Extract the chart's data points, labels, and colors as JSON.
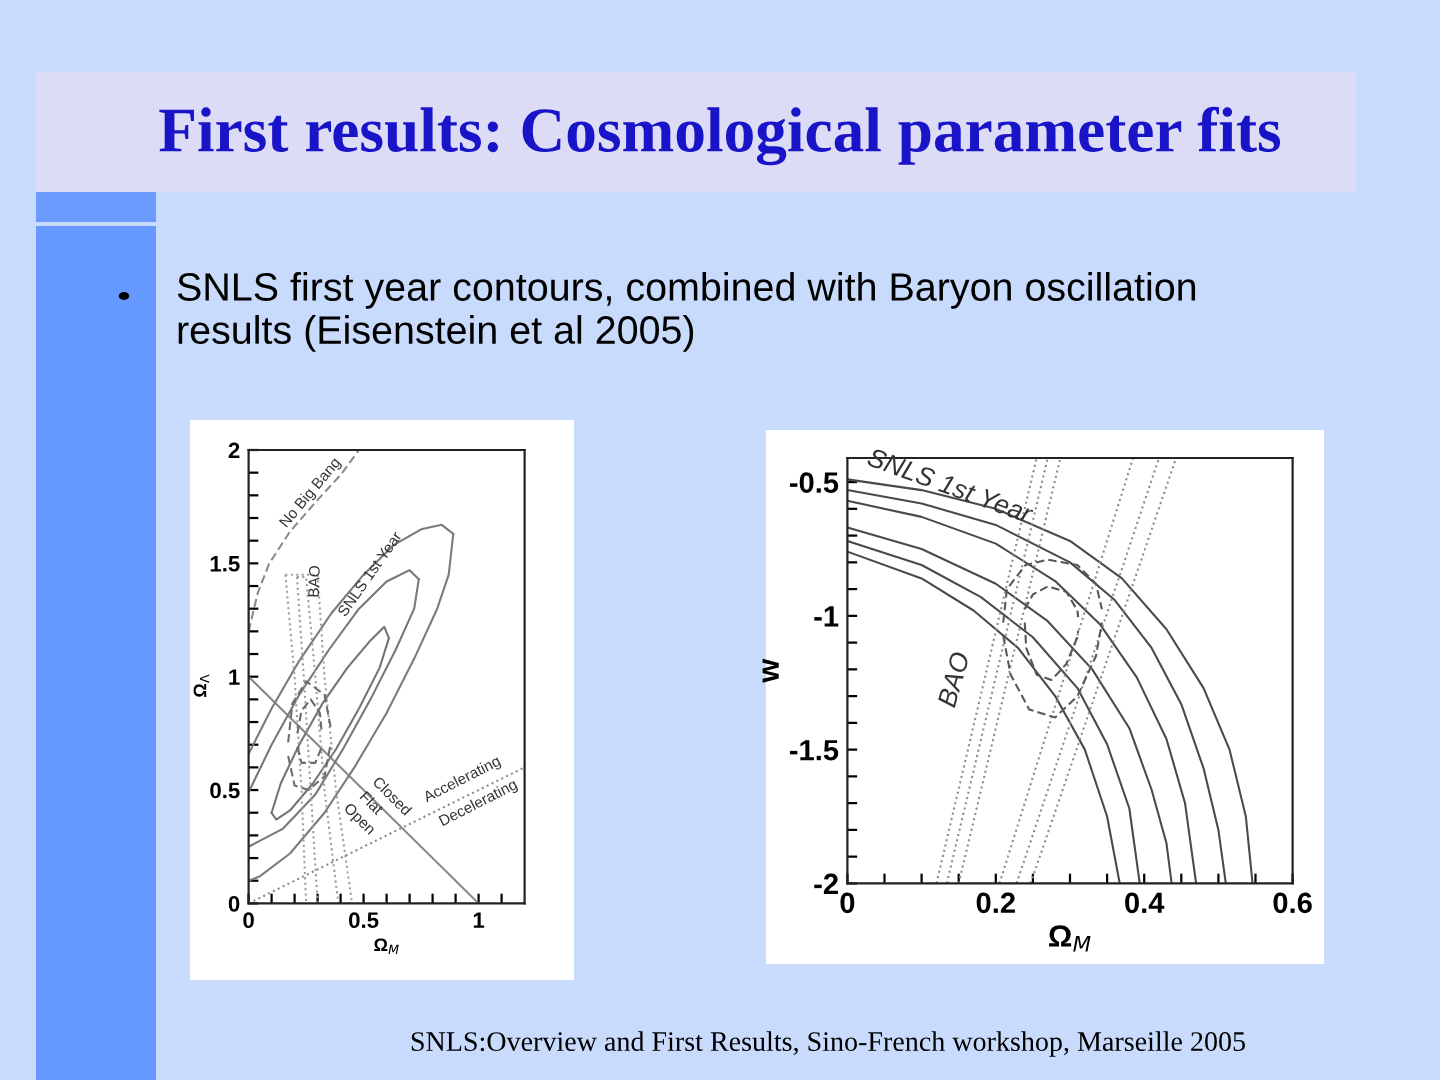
{
  "chart_data": [
    {
      "type": "other",
      "title": "First results: Cosmological parameter fits",
      "subtitle": "SNLS first year contours, combined with Baryon oscillation results (Eisenstein et al 2005)",
      "annotations": [
        "SNLS:Overview and First Results, Sino-French workshop, Marseille 2005"
      ]
    },
    {
      "type": "line",
      "xlabel": "Ω$_{M}$",
      "ylabel": "Ω$_{Λ}$",
      "xlim": [
        0,
        1.2
      ],
      "ylim": [
        0,
        2
      ],
      "xticks": [
        0,
        {
          "value": 0.1,
          "label": null
        },
        {
          "value": 0.2,
          "label": null
        },
        {
          "value": 0.3,
          "label": null
        },
        {
          "value": 0.4,
          "label": null
        },
        0.5,
        {
          "value": 0.6,
          "label": null
        },
        {
          "value": 0.7,
          "label": null
        },
        {
          "value": 0.8,
          "label": null
        },
        {
          "value": 0.9,
          "label": null
        },
        1,
        {
          "value": 1.1,
          "label": null
        }
      ],
      "yticks": [
        0,
        {
          "value": 0.1,
          "label": null
        },
        {
          "value": 0.2,
          "label": null
        },
        {
          "value": 0.3,
          "label": null
        },
        {
          "value": 0.4,
          "label": null
        },
        0.5,
        {
          "value": 0.6,
          "label": null
        },
        {
          "value": 0.7,
          "label": null
        },
        {
          "value": 0.8,
          "label": null
        },
        {
          "value": 0.9,
          "label": null
        },
        1,
        {
          "value": 1.1,
          "label": null
        },
        {
          "value": 1.2,
          "label": null
        },
        {
          "value": 1.3,
          "label": null
        },
        {
          "value": 1.4,
          "label": null
        },
        1.5,
        {
          "value": 1.6,
          "label": null
        },
        {
          "value": 1.7,
          "label": null
        },
        {
          "value": 1.8,
          "label": null
        },
        {
          "value": 1.9,
          "label": null
        },
        2
      ],
      "series": [
        {
          "color": "#8a8a8a",
          "line_style": "dashed",
          "x": [
            0,
            0.04,
            0.09,
            0.18,
            0.3,
            0.4,
            0.48
          ],
          "values": [
            1.2,
            1.37,
            1.5,
            1.64,
            1.78,
            1.89,
            2.0
          ]
        },
        {
          "color": "#888888",
          "line_style": "solid",
          "x": [
            0,
            1
          ],
          "values": [
            1,
            0
          ]
        },
        {
          "color": "#8c8c8c",
          "line_style": "dotted",
          "x": [
            0,
            1.2
          ],
          "values": [
            0,
            0.6
          ]
        },
        {
          "color": "#747474",
          "line_style": "solid",
          "x": [
            0.1,
            0.14,
            0.22,
            0.32,
            0.43,
            0.53,
            0.59,
            0.61
          ],
          "values": [
            0.4,
            0.53,
            0.7,
            0.88,
            1.04,
            1.16,
            1.22,
            1.17
          ]
        },
        {
          "color": "#757575",
          "line_style": "solid",
          "x": [
            0.1,
            0.12,
            0.18,
            0.28,
            0.38,
            0.48,
            0.57,
            0.61
          ],
          "values": [
            0.4,
            0.37,
            0.41,
            0.53,
            0.68,
            0.86,
            1.04,
            1.17
          ]
        },
        {
          "color": "#777777",
          "line_style": "solid",
          "x": [
            0,
            0.1,
            0.22,
            0.35,
            0.48,
            0.6,
            0.7,
            0.74
          ],
          "values": [
            0.49,
            0.7,
            0.92,
            1.12,
            1.3,
            1.42,
            1.47,
            1.43
          ]
        },
        {
          "color": "#787878",
          "line_style": "solid",
          "x": [
            0,
            0.15,
            0.29,
            0.41,
            0.53,
            0.64,
            0.72,
            0.74
          ],
          "values": [
            0.25,
            0.33,
            0.48,
            0.68,
            0.9,
            1.12,
            1.3,
            1.43
          ]
        },
        {
          "color": "#7a7a7a",
          "line_style": "solid",
          "x": [
            0,
            0.1,
            0.22,
            0.36,
            0.5,
            0.63,
            0.75,
            0.84,
            0.89
          ],
          "values": [
            0.66,
            0.86,
            1.07,
            1.28,
            1.45,
            1.58,
            1.65,
            1.67,
            1.63
          ]
        },
        {
          "color": "#7b7b7b",
          "line_style": "solid",
          "x": [
            0,
            0.05,
            0.18,
            0.33,
            0.46,
            0.6,
            0.72,
            0.82,
            0.87,
            0.89
          ],
          "values": [
            0.1,
            0.12,
            0.22,
            0.4,
            0.6,
            0.84,
            1.08,
            1.3,
            1.45,
            1.63
          ]
        },
        {
          "color": "#9a9a9a",
          "line_style": "dotted",
          "x": [
            0.21,
            0.24,
            0.27,
            0.3
          ],
          "values": [
            1.44,
            1.0,
            0.5,
            0
          ]
        },
        {
          "color": "#9b9b9b",
          "line_style": "dotted",
          "x": [
            0.21,
            0.25,
            0.29,
            0.33,
            0.39
          ],
          "values": [
            1.44,
            1.44,
            1.0,
            0.5,
            0
          ]
        },
        {
          "color": "#9d9d9d",
          "line_style": "dotted",
          "x": [
            0.16,
            0.2,
            0.23,
            0.25
          ],
          "values": [
            1.45,
            1.0,
            0.5,
            0
          ]
        },
        {
          "color": "#9e9e9e",
          "line_style": "dotted",
          "x": [
            0.16,
            0.3,
            0.33,
            0.38,
            0.45
          ],
          "values": [
            1.45,
            1.45,
            1.0,
            0.5,
            0
          ]
        },
        {
          "color": "#6a6a6a",
          "line_style": "dashed",
          "x": [
            0.212,
            0.23,
            0.27,
            0.31,
            0.318
          ],
          "values": [
            0.75,
            0.85,
            0.9,
            0.84,
            0.75
          ]
        },
        {
          "color": "#6b6b6b",
          "line_style": "dashed",
          "x": [
            0.212,
            0.23,
            0.29,
            0.318
          ],
          "values": [
            0.69,
            0.62,
            0.62,
            0.69
          ]
        },
        {
          "color": "#6d6d6d",
          "line_style": "dashed",
          "x": [
            0.172,
            0.19,
            0.25,
            0.33,
            0.358
          ],
          "values": [
            0.71,
            0.88,
            0.98,
            0.92,
            0.77
          ]
        },
        {
          "color": "#6e6e6e",
          "line_style": "dashed",
          "x": [
            0.172,
            0.2,
            0.26,
            0.33,
            0.358
          ],
          "values": [
            0.65,
            0.52,
            0.5,
            0.56,
            0.71
          ]
        }
      ],
      "annotations": [
        {
          "text": "No Big Bang",
          "x": 0.27,
          "y": 1.81
        },
        {
          "text": "BAO",
          "x": 0.29,
          "y": 1.42
        },
        {
          "text": "SNLS 1st Year",
          "x": 0.53,
          "y": 1.45
        },
        "Closed",
        {
          "text": "Flat",
          "x": 0.53,
          "y": 0.44
        },
        "Open",
        "Accelerating",
        "Decelerating"
      ]
    },
    {
      "type": "line",
      "xlabel": "Ω$_{M}$",
      "ylabel": "w",
      "xlim": [
        0,
        0.6
      ],
      "ylim": [
        -2,
        -0.41
      ],
      "xticks": [
        0,
        {
          "value": 0.05,
          "label": null
        },
        {
          "value": 0.1,
          "label": null
        },
        {
          "value": 0.15,
          "label": null
        },
        0.2,
        {
          "value": 0.25,
          "label": null
        },
        {
          "value": 0.3,
          "label": null
        },
        {
          "value": 0.35,
          "label": null
        },
        0.4,
        {
          "value": 0.45,
          "label": null
        },
        {
          "value": 0.5,
          "label": null
        },
        {
          "value": 0.55,
          "label": null
        },
        0.6
      ],
      "yticks": [
        -2,
        {
          "value": -1.9,
          "label": null
        },
        {
          "value": -1.8,
          "label": null
        },
        {
          "value": -1.7,
          "label": null
        },
        {
          "value": -1.6,
          "label": null
        },
        -1.5,
        {
          "value": -1.4,
          "label": null
        },
        {
          "value": -1.3,
          "label": null
        },
        {
          "value": -1.2,
          "label": null
        },
        {
          "value": -1.1,
          "label": null
        },
        -1,
        {
          "value": -0.9,
          "label": null
        },
        {
          "value": -0.8,
          "label": null
        },
        {
          "value": -0.7,
          "label": null
        },
        {
          "value": -0.6,
          "label": null
        },
        -0.5
      ],
      "series": [
        {
          "color": "#4a4a4a",
          "line_style": "solid",
          "x": [
            0,
            0.1,
            0.2,
            0.3,
            0.37,
            0.43,
            0.48,
            0.515,
            0.537,
            0.546
          ],
          "values": [
            -0.49,
            -0.53,
            -0.6,
            -0.72,
            -0.86,
            -1.05,
            -1.27,
            -1.5,
            -1.75,
            -2.0
          ]
        },
        {
          "color": "#4a4a4a",
          "line_style": "solid",
          "x": [
            0,
            0.1,
            0.2,
            0.3,
            0.36,
            0.41,
            0.45,
            0.48,
            0.5,
            0.51
          ],
          "values": [
            -0.53,
            -0.58,
            -0.66,
            -0.8,
            -0.94,
            -1.12,
            -1.33,
            -1.57,
            -1.8,
            -2.0
          ]
        },
        {
          "color": "#4a4a4a",
          "line_style": "solid",
          "x": [
            0,
            0.1,
            0.2,
            0.28,
            0.34,
            0.39,
            0.43,
            0.455,
            0.47
          ],
          "values": [
            -0.57,
            -0.63,
            -0.73,
            -0.87,
            -1.03,
            -1.23,
            -1.46,
            -1.7,
            -2.0
          ]
        },
        {
          "color": "#4a4a4a",
          "line_style": "solid",
          "x": [
            0,
            0.1,
            0.2,
            0.27,
            0.33,
            0.38,
            0.41,
            0.43,
            0.437
          ],
          "values": [
            -0.67,
            -0.75,
            -0.88,
            -1.02,
            -1.2,
            -1.42,
            -1.65,
            -1.85,
            -2.0
          ]
        },
        {
          "color": "#4a4a4a",
          "line_style": "solid",
          "x": [
            0,
            0.1,
            0.18,
            0.25,
            0.31,
            0.35,
            0.38,
            0.394
          ],
          "values": [
            -0.72,
            -0.81,
            -0.93,
            -1.08,
            -1.27,
            -1.48,
            -1.72,
            -2.0
          ]
        },
        {
          "color": "#4a4a4a",
          "line_style": "solid",
          "x": [
            0,
            0.1,
            0.17,
            0.23,
            0.28,
            0.32,
            0.35,
            0.367
          ],
          "values": [
            -0.76,
            -0.86,
            -0.98,
            -1.12,
            -1.3,
            -1.5,
            -1.75,
            -2.0
          ]
        },
        {
          "color": "#8c8c8c",
          "line_style": "dotted",
          "x": [
            0.12,
            0.255
          ],
          "values": [
            -2,
            -0.41
          ]
        },
        {
          "color": "#8c8c8c",
          "line_style": "dotted",
          "x": [
            0.134,
            0.27
          ],
          "values": [
            -2,
            -0.41
          ]
        },
        {
          "color": "#8c8c8c",
          "line_style": "dotted",
          "x": [
            0.15,
            0.287
          ],
          "values": [
            -2,
            -0.41
          ]
        },
        {
          "color": "#8c8c8c",
          "line_style": "dotted",
          "x": [
            0.205,
            0.385
          ],
          "values": [
            -2,
            -0.41
          ]
        },
        {
          "color": "#8c8c8c",
          "line_style": "dotted",
          "x": [
            0.228,
            0.42
          ],
          "values": [
            -2,
            -0.41
          ]
        },
        {
          "color": "#8c8c8c",
          "line_style": "dotted",
          "x": [
            0.247,
            0.443
          ],
          "values": [
            -2,
            -0.41
          ]
        },
        {
          "color": "#555555",
          "line_style": "dashed",
          "x": [
            0.239,
            0.25,
            0.27,
            0.295,
            0.31,
            0.311
          ],
          "values": [
            -0.975,
            -0.92,
            -0.89,
            -0.91,
            -0.98,
            -1.005
          ]
        },
        {
          "color": "#565656",
          "line_style": "dashed",
          "x": [
            0.239,
            0.241,
            0.255,
            0.275,
            0.295,
            0.31,
            0.311
          ],
          "values": [
            -1.025,
            -1.12,
            -1.22,
            -1.24,
            -1.18,
            -1.08,
            -1.055
          ]
        },
        {
          "color": "#585858",
          "line_style": "dashed",
          "x": [
            0.21,
            0.215,
            0.24,
            0.27,
            0.31,
            0.335,
            0.343
          ],
          "values": [
            -1.025,
            -0.9,
            -0.81,
            -0.79,
            -0.81,
            -0.88,
            -0.975
          ]
        },
        {
          "color": "#595959",
          "line_style": "dashed",
          "x": [
            0.21,
            0.22,
            0.245,
            0.28,
            0.31,
            0.335,
            0.343
          ],
          "values": [
            -1.075,
            -1.22,
            -1.35,
            -1.38,
            -1.3,
            -1.15,
            -1.025
          ]
        }
      ],
      "annotations": [
        {
          "text": "SNLS 1st Year",
          "x": 0.137,
          "y": -0.52
        },
        "BAO"
      ]
    }
  ]
}
